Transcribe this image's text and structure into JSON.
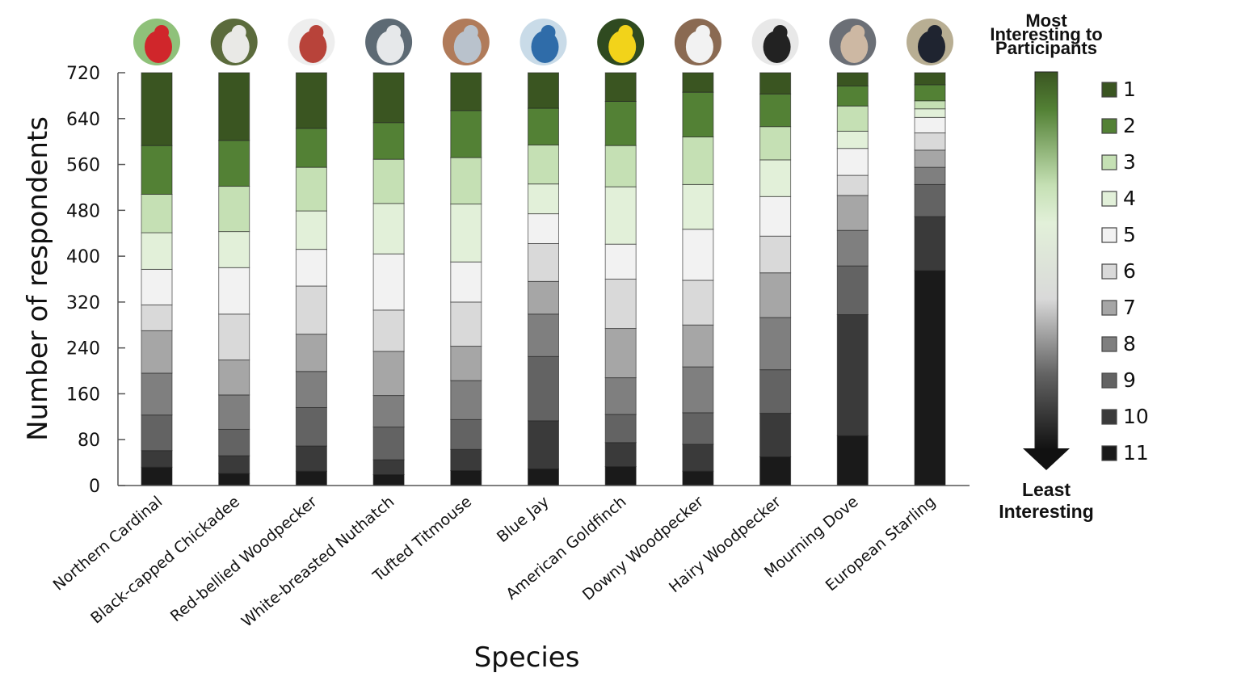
{
  "chart_data": {
    "type": "bar",
    "stacked": true,
    "categories": [
      "Northern Cardinal",
      "Black-capped Chickadee",
      "Red-bellied Woodpecker",
      "White-breasted Nuthatch",
      "Tufted Titmouse",
      "Blue Jay",
      "American Goldfinch",
      "Downy Woodpecker",
      "Hairy Woodpecker",
      "Mourning Dove",
      "European Starling"
    ],
    "xlabel": "Species",
    "ylabel": "Number of respondents",
    "ylim": [
      0,
      720
    ],
    "yticks": [
      0,
      80,
      160,
      240,
      320,
      400,
      480,
      560,
      640,
      720
    ],
    "grid": false,
    "legend_position": "right",
    "legend_top_label": "Most Interesting to Participants",
    "legend_bottom_label": "Least Interesting",
    "series": [
      {
        "name": "1",
        "color": "#3a5521",
        "values": [
          127,
          118,
          97,
          87,
          66,
          62,
          50,
          34,
          37,
          23,
          21
        ]
      },
      {
        "name": "2",
        "color": "#538135",
        "values": [
          85,
          80,
          68,
          64,
          82,
          64,
          77,
          78,
          57,
          35,
          28
        ]
      },
      {
        "name": "3",
        "color": "#c5e0b4",
        "values": [
          67,
          79,
          76,
          77,
          81,
          68,
          72,
          83,
          58,
          44,
          14
        ]
      },
      {
        "name": "4",
        "color": "#e2f0d9",
        "values": [
          64,
          63,
          67,
          88,
          101,
          52,
          100,
          78,
          64,
          30,
          15
        ]
      },
      {
        "name": "5",
        "color": "#f2f2f2",
        "values": [
          62,
          81,
          64,
          98,
          70,
          52,
          61,
          89,
          69,
          47,
          27
        ]
      },
      {
        "name": "6",
        "color": "#d9d9d9",
        "values": [
          45,
          80,
          84,
          72,
          77,
          66,
          86,
          78,
          64,
          35,
          30
        ]
      },
      {
        "name": "7",
        "color": "#a6a6a6",
        "values": [
          74,
          61,
          65,
          77,
          60,
          57,
          86,
          73,
          78,
          61,
          30
        ]
      },
      {
        "name": "8",
        "color": "#7f7f7f",
        "values": [
          73,
          60,
          63,
          55,
          68,
          74,
          64,
          80,
          91,
          62,
          30
        ]
      },
      {
        "name": "9",
        "color": "#636363",
        "values": [
          62,
          46,
          67,
          57,
          52,
          112,
          49,
          55,
          76,
          85,
          56
        ]
      },
      {
        "name": "10",
        "color": "#3a3a3a",
        "values": [
          29,
          31,
          44,
          26,
          37,
          84,
          42,
          47,
          76,
          211,
          94
        ]
      },
      {
        "name": "11",
        "color": "#1a1a1a",
        "values": [
          32,
          21,
          25,
          19,
          26,
          29,
          33,
          25,
          50,
          87,
          375
        ]
      }
    ],
    "species_photos": [
      {
        "icon": "northern-cardinal-photo",
        "colors": [
          "#8fc17a",
          "#d0262b"
        ]
      },
      {
        "icon": "black-capped-chickadee-photo",
        "colors": [
          "#5b6b3c",
          "#e9e9e6"
        ]
      },
      {
        "icon": "red-bellied-woodpecker-photo",
        "colors": [
          "#eeeeee",
          "#b8433a"
        ]
      },
      {
        "icon": "white-breasted-nuthatch-photo",
        "colors": [
          "#5d6a74",
          "#e6e8ea"
        ]
      },
      {
        "icon": "tufted-titmouse-photo",
        "colors": [
          "#b07b5a",
          "#b9c2cc"
        ]
      },
      {
        "icon": "blue-jay-photo",
        "colors": [
          "#c9dbe8",
          "#2f6ca9"
        ]
      },
      {
        "icon": "american-goldfinch-photo",
        "colors": [
          "#2f4a20",
          "#f2d31a"
        ]
      },
      {
        "icon": "downy-woodpecker-photo",
        "colors": [
          "#8a6a52",
          "#f2f2f2"
        ]
      },
      {
        "icon": "hairy-woodpecker-photo",
        "colors": [
          "#e8e8e8",
          "#222222"
        ]
      },
      {
        "icon": "mourning-dove-photo",
        "colors": [
          "#6b6f76",
          "#cdb8a3"
        ]
      },
      {
        "icon": "european-starling-photo",
        "colors": [
          "#b8ae93",
          "#1f2430"
        ]
      }
    ]
  }
}
